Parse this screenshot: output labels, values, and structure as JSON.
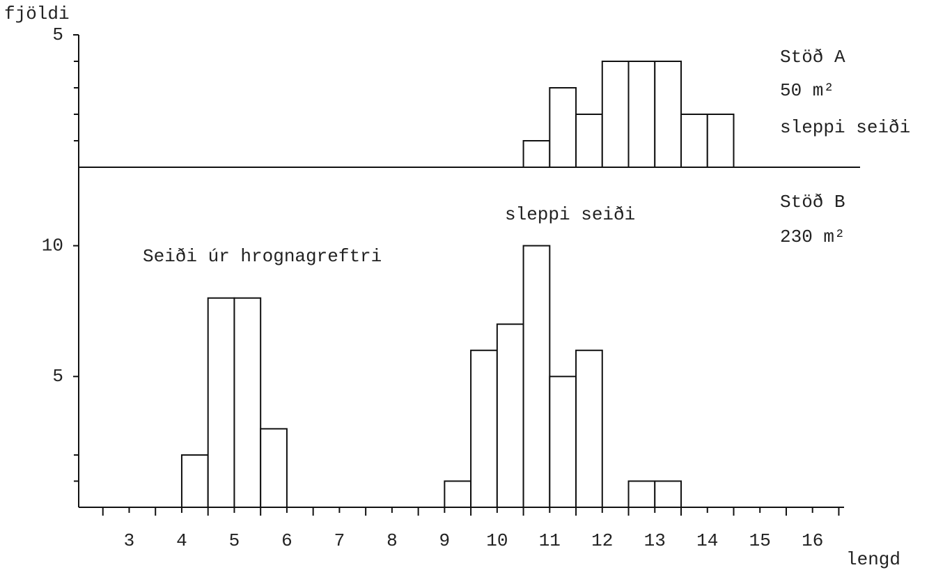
{
  "chart_data": [
    {
      "type": "histogram",
      "ylabel": "fjöldi",
      "annotations": [
        "Stöð A",
        "50 m²",
        "sleppi seiði"
      ],
      "bins": [
        10.5,
        11,
        11.5,
        12,
        12.5,
        13,
        13.5,
        14,
        14.5
      ],
      "values": [
        1,
        3,
        2,
        4,
        4,
        4,
        2,
        2
      ],
      "color": "#ffffff",
      "xlim": [
        2,
        16.6
      ],
      "ylim": [
        0,
        5
      ],
      "yticks": [
        5
      ],
      "yminor_ticks": [
        1,
        2,
        3,
        4
      ]
    },
    {
      "type": "histogram",
      "xlabel": "lengd",
      "annotations": [
        "Stöð B",
        "230 m²",
        "sleppi seiði",
        "Seiði úr hrognagreftri"
      ],
      "bins": [
        4,
        4.5,
        5,
        5.5,
        6,
        6.5,
        7,
        7.5,
        8,
        8.5,
        9,
        9.5,
        10,
        10.5,
        11,
        11.5,
        12,
        12.5,
        13,
        13.5
      ],
      "values": [
        2,
        8,
        8,
        3,
        0,
        0,
        0,
        0,
        0,
        0,
        1,
        6,
        7,
        10,
        5,
        6,
        0,
        1,
        1
      ],
      "color": "#ffffff",
      "xlim": [
        2,
        16.6
      ],
      "ylim": [
        0,
        13
      ],
      "yticks": [
        5,
        10
      ],
      "yminor_ticks": [
        1,
        2
      ],
      "xticks": [
        3,
        4,
        5,
        6,
        7,
        8,
        9,
        10,
        11,
        12,
        13,
        14,
        15,
        16
      ],
      "xminor_ticks": [
        2.5,
        3.5,
        4.5,
        5.5,
        6.5,
        7.5,
        8.5,
        9.5,
        10.5,
        11.5,
        12.5,
        13.5,
        14.5,
        15.5,
        16.5
      ]
    }
  ]
}
